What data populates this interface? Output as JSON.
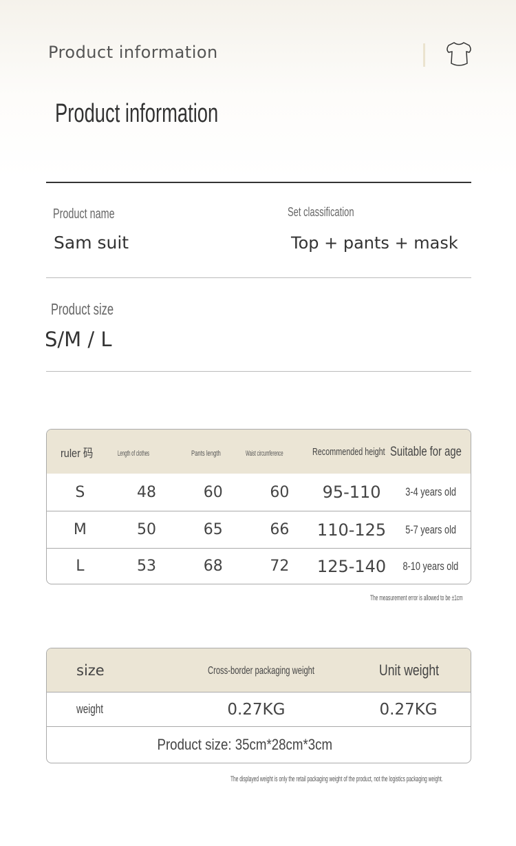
{
  "header": {
    "title": "Product information",
    "icon": "shirt-icon",
    "accent": "#ebe3cf"
  },
  "section_title": "Product information",
  "fields": {
    "product_name_label": "Product name",
    "product_name": "Sam suit",
    "set_classification_label": "Set classification",
    "set_classification": "Top + pants + mask",
    "product_size_label": "Product size",
    "product_size": "S/M / L"
  },
  "size_table": {
    "header_bg": "#ebe5d5",
    "columns": [
      "ruler 码",
      "Length of clothes",
      "Pants length",
      "Waist circumference",
      "Recommended height",
      "Suitable for age"
    ],
    "rows": [
      [
        "S",
        "48",
        "60",
        "60",
        "95-110",
        "3-4 years old"
      ],
      [
        "M",
        "50",
        "65",
        "66",
        "110-125",
        "5-7 years old"
      ],
      [
        "L",
        "53",
        "68",
        "72",
        "125-140",
        "8-10 years old"
      ]
    ],
    "note": "The measurement error is allowed to be ±1cm"
  },
  "weight_table": {
    "columns": [
      "size",
      "Cross-border packaging weight",
      "Unit weight"
    ],
    "row": [
      "weight",
      "0.27KG",
      "0.27KG"
    ],
    "product_size": "Product size: 35cm*28cm*3cm",
    "note": "The displayed weight is only the retail packaging weight of the product, not the logistics packaging weight."
  }
}
